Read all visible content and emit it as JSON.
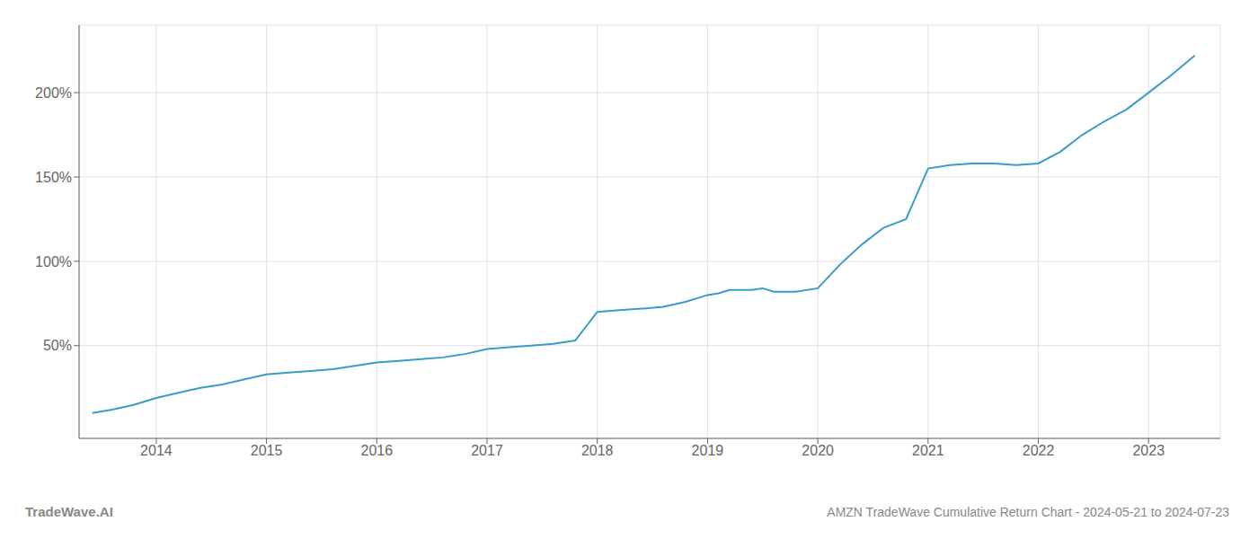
{
  "chart_data": {
    "type": "line",
    "title": "AMZN TradeWave Cumulative Return Chart - 2024-05-21 to 2024-07-23",
    "annotations": [
      "TradeWave.AI"
    ],
    "x": [
      2013.42,
      2013.6,
      2013.8,
      2014.0,
      2014.2,
      2014.4,
      2014.6,
      2014.8,
      2015.0,
      2015.2,
      2015.4,
      2015.6,
      2015.8,
      2016.0,
      2016.2,
      2016.4,
      2016.6,
      2016.8,
      2017.0,
      2017.2,
      2017.4,
      2017.6,
      2017.8,
      2018.0,
      2018.2,
      2018.4,
      2018.42,
      2018.6,
      2018.8,
      2019.0,
      2019.1,
      2019.2,
      2019.4,
      2019.5,
      2019.6,
      2019.8,
      2020.0,
      2020.2,
      2020.4,
      2020.6,
      2020.8,
      2021.0,
      2021.2,
      2021.4,
      2021.6,
      2021.8,
      2022.0,
      2022.2,
      2022.4,
      2022.6,
      2022.8,
      2023.0,
      2023.2,
      2023.42
    ],
    "values": [
      10,
      12,
      15,
      19,
      22,
      25,
      27,
      30,
      33,
      34,
      35,
      36,
      38,
      40,
      41,
      42,
      43,
      45,
      48,
      49,
      50,
      51,
      53,
      70,
      71,
      72,
      72,
      73,
      76,
      80,
      81,
      83,
      83,
      84,
      82,
      82,
      84,
      98,
      110,
      120,
      125,
      155,
      157,
      158,
      158,
      157,
      158,
      165,
      175,
      183,
      190,
      200,
      210,
      222
    ],
    "color": "#3a9cc8",
    "xlim": [
      2013.3,
      2023.65
    ],
    "xticks": [
      2014,
      2015,
      2016,
      2017,
      2018,
      2019,
      2020,
      2021,
      2022,
      2023
    ],
    "ylim": [
      -5,
      240
    ],
    "yticks": [
      {
        "value": 50,
        "label": "50%"
      },
      {
        "value": 100,
        "label": "100%"
      },
      {
        "value": 150,
        "label": "150%"
      },
      {
        "value": 200,
        "label": "200%"
      }
    ],
    "grid": true
  }
}
